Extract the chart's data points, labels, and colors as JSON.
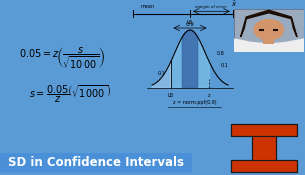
{
  "outer_border_color": "#5B9BD5",
  "bg_color": "#FFFFFF",
  "label_bg_color": "#4A90D9",
  "label_text": "SD in Confidence Intervals",
  "label_text_color": "#FFFFFF",
  "label_fontsize": 8.5,
  "illinois_I_color": "#CC3300",
  "illinois_I_outline": "#1A1A1A",
  "webcam_bg": "#C0A882",
  "normal_curve_color": "#7BBFE8",
  "normal_dark_color": "#3A6AAA"
}
